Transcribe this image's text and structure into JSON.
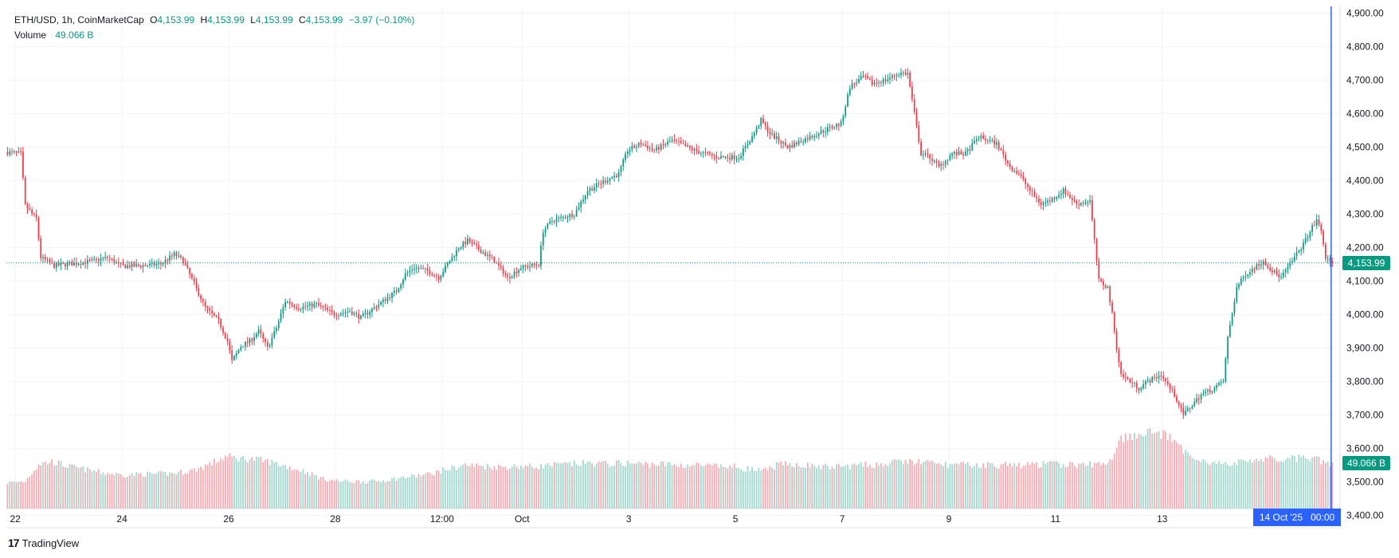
{
  "legend": {
    "symbol": "ETH/USD, 1h, CoinMarketCap",
    "o_label": "O",
    "open": "4,153.99",
    "h_label": "H",
    "high": "4,153.99",
    "l_label": "L",
    "low": "4,153.99",
    "c_label": "C",
    "close": "4,153.99",
    "change": "−3.97 (−0.10%)",
    "volume_label": "Volume",
    "volume_value": "49.066 B"
  },
  "price_tag": "4,153.99",
  "volume_tag": "49.066 B",
  "crosshair_time": "14 Oct '25   00:00",
  "brand": "TradingView",
  "brand_mark": "17",
  "colors": {
    "up": "#089981",
    "down": "#f23645",
    "up_volume": "#9fd8cc",
    "down_volume": "#f7a9b1",
    "grid": "#f0f3fa",
    "crosshair": "#2962ff",
    "text": "#131722"
  },
  "chart_data": {
    "type": "candlestick",
    "title": "ETH/USD, 1h, CoinMarketCap",
    "y_ticks": [
      "4,900.00",
      "4,800.00",
      "4,700.00",
      "4,600.00",
      "4,500.00",
      "4,400.00",
      "4,300.00",
      "4,200.00",
      "4,100.00",
      "4,000.00",
      "3,900.00",
      "3,800.00",
      "3,700.00",
      "3,600.00",
      "3,500.00",
      "3,400.00"
    ],
    "y_tick_values": [
      4900,
      4800,
      4700,
      4600,
      4500,
      4400,
      4300,
      4200,
      4100,
      4000,
      3900,
      3800,
      3700,
      3600,
      3500,
      3400
    ],
    "ylim": [
      3420,
      4920
    ],
    "x_ticks": [
      "22",
      "24",
      "26",
      "28",
      "12:00",
      "Oct",
      "3",
      "5",
      "7",
      "9",
      "11",
      "13"
    ],
    "x_tick_hours": [
      4,
      52,
      100,
      148,
      196,
      232,
      280,
      328,
      376,
      424,
      472,
      520
    ],
    "last_price": 4153.99,
    "last_volume_billions": 49.066,
    "price_path": [
      [
        0,
        4485
      ],
      [
        7,
        4480
      ],
      [
        9,
        4325
      ],
      [
        14,
        4285
      ],
      [
        16,
        4170
      ],
      [
        22,
        4145
      ],
      [
        28,
        4150
      ],
      [
        40,
        4160
      ],
      [
        46,
        4170
      ],
      [
        52,
        4145
      ],
      [
        60,
        4145
      ],
      [
        70,
        4150
      ],
      [
        76,
        4180
      ],
      [
        80,
        4160
      ],
      [
        84,
        4105
      ],
      [
        90,
        4020
      ],
      [
        96,
        3980
      ],
      [
        100,
        3920
      ],
      [
        102,
        3860
      ],
      [
        106,
        3905
      ],
      [
        110,
        3920
      ],
      [
        114,
        3950
      ],
      [
        118,
        3900
      ],
      [
        122,
        3960
      ],
      [
        126,
        4040
      ],
      [
        132,
        4020
      ],
      [
        140,
        4030
      ],
      [
        148,
        4000
      ],
      [
        155,
        4010
      ],
      [
        160,
        3990
      ],
      [
        166,
        4020
      ],
      [
        176,
        4070
      ],
      [
        180,
        4120
      ],
      [
        184,
        4140
      ],
      [
        190,
        4130
      ],
      [
        195,
        4110
      ],
      [
        198,
        4140
      ],
      [
        204,
        4200
      ],
      [
        208,
        4220
      ],
      [
        214,
        4190
      ],
      [
        220,
        4160
      ],
      [
        226,
        4110
      ],
      [
        232,
        4140
      ],
      [
        240,
        4150
      ],
      [
        242,
        4250
      ],
      [
        246,
        4280
      ],
      [
        256,
        4300
      ],
      [
        262,
        4370
      ],
      [
        270,
        4400
      ],
      [
        276,
        4420
      ],
      [
        280,
        4490
      ],
      [
        286,
        4510
      ],
      [
        292,
        4490
      ],
      [
        300,
        4520
      ],
      [
        310,
        4490
      ],
      [
        320,
        4470
      ],
      [
        330,
        4470
      ],
      [
        336,
        4530
      ],
      [
        340,
        4580
      ],
      [
        344,
        4540
      ],
      [
        352,
        4500
      ],
      [
        362,
        4530
      ],
      [
        372,
        4560
      ],
      [
        376,
        4570
      ],
      [
        380,
        4680
      ],
      [
        386,
        4710
      ],
      [
        390,
        4690
      ],
      [
        396,
        4700
      ],
      [
        402,
        4720
      ],
      [
        406,
        4720
      ],
      [
        412,
        4480
      ],
      [
        416,
        4470
      ],
      [
        420,
        4440
      ],
      [
        426,
        4480
      ],
      [
        432,
        4480
      ],
      [
        438,
        4530
      ],
      [
        446,
        4510
      ],
      [
        452,
        4440
      ],
      [
        456,
        4420
      ],
      [
        462,
        4360
      ],
      [
        466,
        4330
      ],
      [
        470,
        4340
      ],
      [
        476,
        4370
      ],
      [
        482,
        4330
      ],
      [
        488,
        4340
      ],
      [
        492,
        4100
      ],
      [
        496,
        4080
      ],
      [
        498,
        4000
      ],
      [
        500,
        3900
      ],
      [
        502,
        3820
      ],
      [
        506,
        3800
      ],
      [
        510,
        3780
      ],
      [
        514,
        3800
      ],
      [
        520,
        3820
      ],
      [
        526,
        3760
      ],
      [
        530,
        3700
      ],
      [
        534,
        3730
      ],
      [
        538,
        3760
      ],
      [
        544,
        3780
      ],
      [
        548,
        3800
      ],
      [
        550,
        3930
      ],
      [
        554,
        4080
      ],
      [
        558,
        4120
      ],
      [
        562,
        4140
      ],
      [
        566,
        4160
      ],
      [
        570,
        4130
      ],
      [
        574,
        4110
      ],
      [
        578,
        4150
      ],
      [
        584,
        4210
      ],
      [
        588,
        4260
      ],
      [
        590,
        4280
      ],
      [
        592,
        4250
      ],
      [
        594,
        4170
      ],
      [
        596,
        4154
      ]
    ],
    "volume_path": [
      [
        0,
        0.52
      ],
      [
        8,
        0.55
      ],
      [
        14,
        0.9
      ],
      [
        20,
        0.95
      ],
      [
        28,
        0.85
      ],
      [
        36,
        0.78
      ],
      [
        44,
        0.72
      ],
      [
        52,
        0.68
      ],
      [
        60,
        0.7
      ],
      [
        68,
        0.7
      ],
      [
        76,
        0.72
      ],
      [
        84,
        0.78
      ],
      [
        92,
        0.92
      ],
      [
        98,
        1.05
      ],
      [
        104,
        1.02
      ],
      [
        110,
        1.0
      ],
      [
        118,
        0.95
      ],
      [
        126,
        0.85
      ],
      [
        134,
        0.75
      ],
      [
        142,
        0.6
      ],
      [
        150,
        0.55
      ],
      [
        158,
        0.55
      ],
      [
        166,
        0.55
      ],
      [
        174,
        0.6
      ],
      [
        182,
        0.65
      ],
      [
        190,
        0.7
      ],
      [
        198,
        0.8
      ],
      [
        206,
        0.88
      ],
      [
        214,
        0.86
      ],
      [
        222,
        0.84
      ],
      [
        230,
        0.86
      ],
      [
        238,
        0.85
      ],
      [
        246,
        0.88
      ],
      [
        254,
        0.9
      ],
      [
        262,
        0.92
      ],
      [
        270,
        0.9
      ],
      [
        278,
        0.92
      ],
      [
        286,
        0.9
      ],
      [
        294,
        0.9
      ],
      [
        302,
        0.88
      ],
      [
        310,
        0.88
      ],
      [
        318,
        0.85
      ],
      [
        326,
        0.85
      ],
      [
        334,
        0.8
      ],
      [
        340,
        0.75
      ],
      [
        346,
        0.88
      ],
      [
        354,
        0.9
      ],
      [
        362,
        0.86
      ],
      [
        370,
        0.84
      ],
      [
        378,
        0.86
      ],
      [
        386,
        0.88
      ],
      [
        394,
        0.9
      ],
      [
        402,
        0.95
      ],
      [
        410,
        0.95
      ],
      [
        418,
        0.9
      ],
      [
        426,
        0.88
      ],
      [
        434,
        0.88
      ],
      [
        442,
        0.88
      ],
      [
        450,
        0.88
      ],
      [
        458,
        0.88
      ],
      [
        466,
        0.9
      ],
      [
        474,
        0.9
      ],
      [
        482,
        0.88
      ],
      [
        490,
        0.9
      ],
      [
        496,
        0.95
      ],
      [
        500,
        1.4
      ],
      [
        506,
        1.5
      ],
      [
        512,
        1.56
      ],
      [
        518,
        1.52
      ],
      [
        524,
        1.4
      ],
      [
        528,
        1.2
      ],
      [
        534,
        1.05
      ],
      [
        540,
        0.95
      ],
      [
        546,
        0.9
      ],
      [
        552,
        0.9
      ],
      [
        558,
        0.98
      ],
      [
        564,
        1.0
      ],
      [
        570,
        1.0
      ],
      [
        576,
        1.0
      ],
      [
        582,
        1.02
      ],
      [
        588,
        1.0
      ],
      [
        594,
        0.92
      ],
      [
        598,
        0.92
      ]
    ]
  }
}
